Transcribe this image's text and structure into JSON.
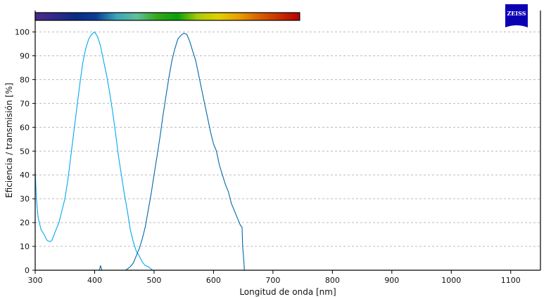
{
  "chart_data": {
    "type": "line",
    "xlabel": "Longitud de onda [nm]",
    "ylabel": "Eficiencia / transmisión [%]",
    "xlim": [
      300,
      1150
    ],
    "ylim": [
      0,
      109
    ],
    "xticks": [
      300,
      400,
      500,
      600,
      700,
      800,
      900,
      1000,
      1100
    ],
    "yticks": [
      0,
      10,
      20,
      30,
      40,
      50,
      60,
      70,
      80,
      90,
      100
    ],
    "grid": "horizontal dashed",
    "spectrum_bar": {
      "range_nm": [
        300,
        745
      ],
      "colors": [
        "#4b2a8c",
        "#2e2a8a",
        "#0a2a88",
        "#0a3f95",
        "#3aa6b8",
        "#5ec09a",
        "#33a81a",
        "#0aa00a",
        "#a8cc0a",
        "#e0d000",
        "#e8a000",
        "#d86000",
        "#c83000",
        "#b80000"
      ]
    },
    "logo": "ZEISS",
    "logo_color": "#0a00b4",
    "series": [
      {
        "color": "#00a8f0",
        "x": [
          300,
          302,
          305,
          310,
          315,
          320,
          325,
          328,
          335,
          340,
          345,
          350,
          355,
          360,
          365,
          370,
          375,
          380,
          385,
          390,
          395,
          400,
          405,
          410,
          415,
          420,
          425,
          430,
          435,
          440,
          445,
          450,
          455,
          460,
          465,
          470,
          475,
          480,
          485,
          490,
          495,
          498
        ],
        "y": [
          42,
          30,
          22,
          17,
          15,
          12.5,
          12,
          12.5,
          17,
          20,
          25,
          30,
          38,
          48,
          58,
          68,
          78,
          87,
          93,
          97,
          99,
          100,
          98,
          94,
          88,
          82,
          75,
          67,
          58,
          48,
          40,
          32,
          25,
          17,
          12,
          8,
          6,
          3.5,
          2,
          1.5,
          0.5,
          0
        ]
      },
      {
        "color": "#0068a8",
        "x": [
          405,
          408,
          410,
          412,
          415,
          452,
          455,
          460,
          465,
          470,
          475,
          480,
          485,
          490,
          495,
          500,
          505,
          510,
          515,
          520,
          525,
          530,
          535,
          540,
          545,
          550,
          555,
          560,
          565,
          570,
          575,
          580,
          585,
          590,
          595,
          600,
          605,
          610,
          615,
          620,
          625,
          630,
          635,
          640,
          645,
          648,
          649,
          651,
          652
        ],
        "y": [
          0,
          0,
          2,
          0,
          0,
          0,
          0.5,
          1.5,
          3,
          6,
          9,
          13,
          18,
          25,
          32,
          40,
          48,
          56,
          65,
          73,
          81,
          88,
          93,
          97,
          98.5,
          99.5,
          99,
          96,
          92,
          88,
          82,
          76,
          70,
          64,
          58,
          53,
          50,
          44,
          40,
          36,
          33,
          28,
          25,
          22,
          19,
          18,
          10,
          4,
          0
        ]
      }
    ]
  }
}
